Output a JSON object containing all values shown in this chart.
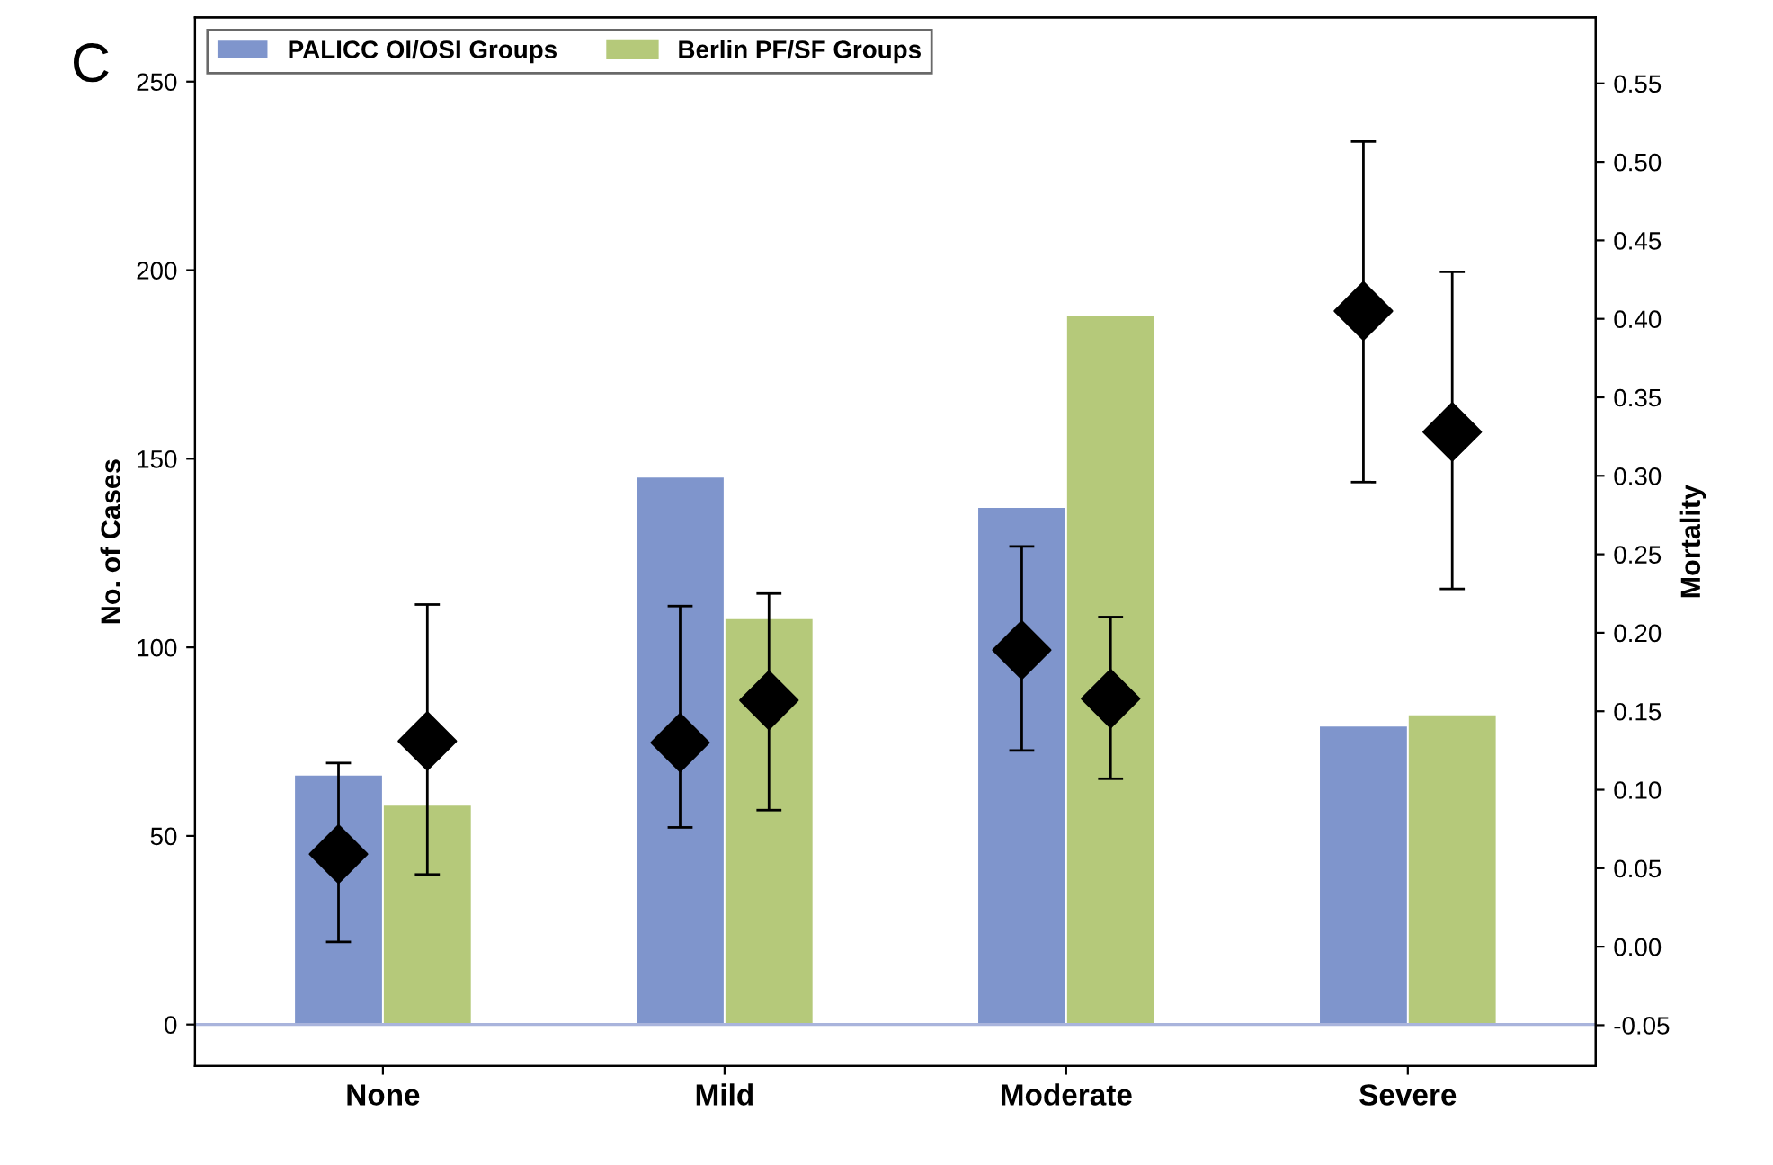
{
  "chart_data": {
    "type": "bar",
    "ylabel": "No. of Cases",
    "y2label": "Mortality",
    "categories": [
      "None",
      "Mild",
      "Moderate",
      "Severe"
    ],
    "series": [
      {
        "name": "PALICC OI/OSI Groups",
        "color": "#7f95cc",
        "values": [
          66,
          145,
          137,
          79
        ]
      },
      {
        "name": "Berlin PF/SF Groups",
        "color": "#b5c97a",
        "values": [
          58,
          107.5,
          188,
          82
        ]
      },
      {
        "type": "scatter",
        "axis": "y2",
        "color": "#000000",
        "x": [
          "None",
          "Mild",
          "Moderate",
          "Severe"
        ],
        "values": [
          0.059,
          0.13,
          0.189,
          0.405
        ],
        "errors": [
          [
            0.003,
            0.117
          ],
          [
            0.076,
            0.217
          ],
          [
            0.125,
            0.255
          ],
          [
            0.296,
            0.513
          ]
        ]
      },
      {
        "type": "scatter",
        "axis": "y2",
        "color": "#000000",
        "x": [
          "None",
          "Mild",
          "Moderate",
          "Severe"
        ],
        "values": [
          0.131,
          0.157,
          0.158,
          0.328
        ],
        "errors": [
          [
            0.046,
            0.218
          ],
          [
            0.087,
            0.225
          ],
          [
            0.107,
            0.21
          ],
          [
            0.228,
            0.43
          ]
        ]
      }
    ],
    "ylim": [
      -11,
      267
    ],
    "yticks": [
      0,
      50,
      100,
      150,
      200,
      250
    ],
    "y2lim": [
      -0.076,
      0.592
    ],
    "y2ticks": [
      {
        "value": -0.05,
        "label": "-0.05"
      },
      {
        "value": 0,
        "label": "0.00"
      },
      {
        "value": 0.05,
        "label": "0.05"
      },
      {
        "value": 0.1,
        "label": "0.10"
      },
      {
        "value": 0.15,
        "label": "0.15"
      },
      {
        "value": 0.2,
        "label": "0.20"
      },
      {
        "value": 0.25,
        "label": "0.25"
      },
      {
        "value": 0.3,
        "label": "0.30"
      },
      {
        "value": 0.35,
        "label": "0.35"
      },
      {
        "value": 0.4,
        "label": "0.40"
      },
      {
        "value": 0.45,
        "label": "0.45"
      },
      {
        "value": 0.5,
        "label": "0.50"
      },
      {
        "value": 0.55,
        "label": "0.55"
      }
    ],
    "ref_lines": [
      {
        "axis": "y",
        "value": 0,
        "color": "#a9b4dc"
      }
    ],
    "marker": "diamond",
    "legend": "top left",
    "grid": false,
    "annotations": [
      "C"
    ]
  }
}
